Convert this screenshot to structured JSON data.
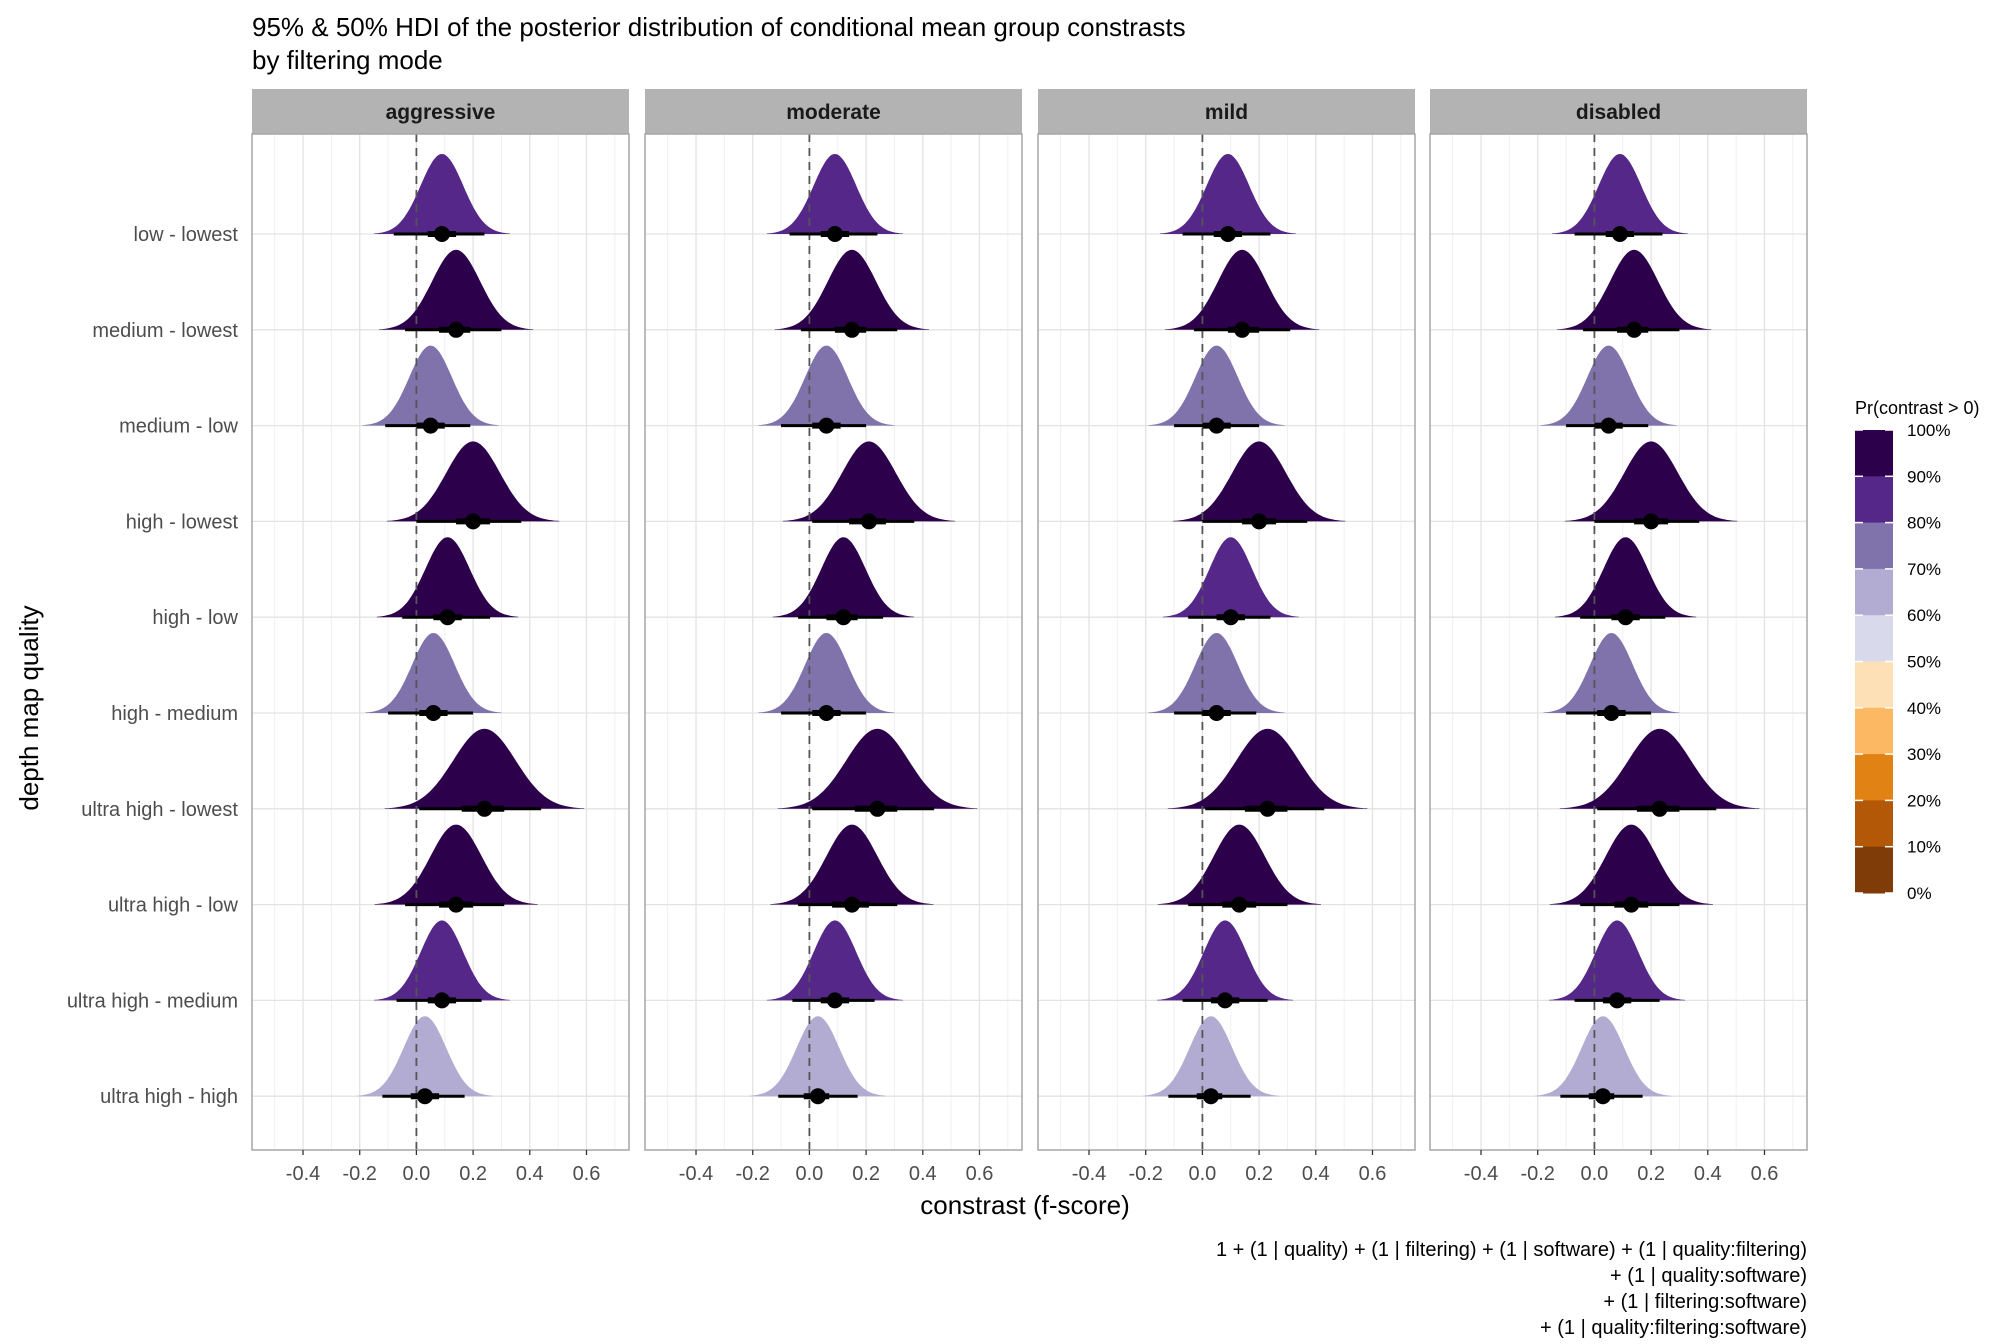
{
  "chart_data": {
    "type": "density-ridges",
    "title_lines": [
      "95% & 50% HDI of the posterior distribution of conditional mean group constrasts",
      "by filtering mode"
    ],
    "xlabel": "constrast (f-score)",
    "ylabel": "depth map quality",
    "caption_lines": [
      "1 + (1 | quality) + (1 | filtering) + (1 | software) + (1 | quality:filtering)",
      "+ (1 | quality:software)",
      "+ (1 | filtering:software)",
      "+ (1 | quality:filtering:software)"
    ],
    "xlim": [
      -0.58,
      0.75
    ],
    "x_ticks": [
      -0.4,
      -0.2,
      0.0,
      0.2,
      0.4,
      0.6
    ],
    "x_tick_labels": [
      "-0.4",
      "-0.2",
      "0.0",
      "0.2",
      "0.4",
      "0.6"
    ],
    "reference_line_x": 0,
    "grid": true,
    "legend_position": "right",
    "legend": {
      "title": "Pr(contrast > 0)",
      "labels": [
        "100%",
        "90%",
        "80%",
        "70%",
        "60%",
        "50%",
        "40%",
        "30%",
        "20%",
        "10%",
        "0%"
      ],
      "bins": [
        {
          "color": "#2d004b",
          "prob_min": 0.9
        },
        {
          "color": "#542788",
          "prob_min": 0.8
        },
        {
          "color": "#8073ac",
          "prob_min": 0.7
        },
        {
          "color": "#b2abd2",
          "prob_min": 0.6
        },
        {
          "color": "#d8daeb",
          "prob_min": 0.5
        },
        {
          "color": "#fee0b6",
          "prob_min": 0.4
        },
        {
          "color": "#fdb863",
          "prob_min": 0.3
        },
        {
          "color": "#e08214",
          "prob_min": 0.2
        },
        {
          "color": "#b35806",
          "prob_min": 0.1
        },
        {
          "color": "#7f3b08",
          "prob_min": 0.0
        }
      ]
    },
    "categories": [
      "low - lowest",
      "medium - lowest",
      "medium - low",
      "high - lowest",
      "high - low",
      "high - medium",
      "ultra high - lowest",
      "ultra high - low",
      "ultra high - medium",
      "ultra high - high"
    ],
    "panels": [
      {
        "name": "aggressive",
        "rows": [
          {
            "mean": 0.09,
            "sd": 0.075,
            "hdi50": [
              0.04,
              0.14
            ],
            "hdi95": [
              -0.08,
              0.24
            ],
            "prob": 0.88
          },
          {
            "mean": 0.14,
            "sd": 0.085,
            "hdi50": [
              0.08,
              0.19
            ],
            "hdi95": [
              -0.04,
              0.3
            ],
            "prob": 0.94
          },
          {
            "mean": 0.05,
            "sd": 0.075,
            "hdi50": [
              0.0,
              0.1
            ],
            "hdi95": [
              -0.11,
              0.19
            ],
            "prob": 0.76
          },
          {
            "mean": 0.2,
            "sd": 0.095,
            "hdi50": [
              0.14,
              0.26
            ],
            "hdi95": [
              0.0,
              0.37
            ],
            "prob": 0.97
          },
          {
            "mean": 0.11,
            "sd": 0.078,
            "hdi50": [
              0.06,
              0.16
            ],
            "hdi95": [
              -0.05,
              0.26
            ],
            "prob": 0.92
          },
          {
            "mean": 0.06,
            "sd": 0.075,
            "hdi50": [
              0.01,
              0.11
            ],
            "hdi95": [
              -0.1,
              0.2
            ],
            "prob": 0.78
          },
          {
            "mean": 0.24,
            "sd": 0.11,
            "hdi50": [
              0.16,
              0.31
            ],
            "hdi95": [
              0.01,
              0.44
            ],
            "prob": 0.97
          },
          {
            "mean": 0.14,
            "sd": 0.09,
            "hdi50": [
              0.08,
              0.2
            ],
            "hdi95": [
              -0.04,
              0.31
            ],
            "prob": 0.93
          },
          {
            "mean": 0.09,
            "sd": 0.075,
            "hdi50": [
              0.04,
              0.14
            ],
            "hdi95": [
              -0.07,
              0.23
            ],
            "prob": 0.88
          },
          {
            "mean": 0.03,
            "sd": 0.075,
            "hdi50": [
              -0.02,
              0.08
            ],
            "hdi95": [
              -0.12,
              0.17
            ],
            "prob": 0.64
          }
        ]
      },
      {
        "name": "moderate",
        "rows": [
          {
            "mean": 0.09,
            "sd": 0.075,
            "hdi50": [
              0.04,
              0.14
            ],
            "hdi95": [
              -0.07,
              0.24
            ],
            "prob": 0.88
          },
          {
            "mean": 0.15,
            "sd": 0.085,
            "hdi50": [
              0.09,
              0.2
            ],
            "hdi95": [
              -0.03,
              0.31
            ],
            "prob": 0.95
          },
          {
            "mean": 0.06,
            "sd": 0.075,
            "hdi50": [
              0.01,
              0.11
            ],
            "hdi95": [
              -0.1,
              0.2
            ],
            "prob": 0.78
          },
          {
            "mean": 0.21,
            "sd": 0.095,
            "hdi50": [
              0.14,
              0.27
            ],
            "hdi95": [
              0.01,
              0.37
            ],
            "prob": 0.97
          },
          {
            "mean": 0.12,
            "sd": 0.078,
            "hdi50": [
              0.06,
              0.17
            ],
            "hdi95": [
              -0.04,
              0.26
            ],
            "prob": 0.92
          },
          {
            "mean": 0.06,
            "sd": 0.075,
            "hdi50": [
              0.01,
              0.11
            ],
            "hdi95": [
              -0.1,
              0.2
            ],
            "prob": 0.78
          },
          {
            "mean": 0.24,
            "sd": 0.11,
            "hdi50": [
              0.16,
              0.31
            ],
            "hdi95": [
              0.01,
              0.44
            ],
            "prob": 0.97
          },
          {
            "mean": 0.15,
            "sd": 0.09,
            "hdi50": [
              0.08,
              0.21
            ],
            "hdi95": [
              -0.04,
              0.31
            ],
            "prob": 0.93
          },
          {
            "mean": 0.09,
            "sd": 0.075,
            "hdi50": [
              0.04,
              0.14
            ],
            "hdi95": [
              -0.06,
              0.23
            ],
            "prob": 0.89
          },
          {
            "mean": 0.03,
            "sd": 0.075,
            "hdi50": [
              -0.02,
              0.07
            ],
            "hdi95": [
              -0.11,
              0.17
            ],
            "prob": 0.64
          }
        ]
      },
      {
        "name": "mild",
        "rows": [
          {
            "mean": 0.09,
            "sd": 0.075,
            "hdi50": [
              0.04,
              0.14
            ],
            "hdi95": [
              -0.07,
              0.24
            ],
            "prob": 0.88
          },
          {
            "mean": 0.14,
            "sd": 0.085,
            "hdi50": [
              0.09,
              0.2
            ],
            "hdi95": [
              -0.03,
              0.31
            ],
            "prob": 0.94
          },
          {
            "mean": 0.05,
            "sd": 0.075,
            "hdi50": [
              0.0,
              0.1
            ],
            "hdi95": [
              -0.1,
              0.2
            ],
            "prob": 0.76
          },
          {
            "mean": 0.2,
            "sd": 0.095,
            "hdi50": [
              0.14,
              0.26
            ],
            "hdi95": [
              0.0,
              0.37
            ],
            "prob": 0.97
          },
          {
            "mean": 0.1,
            "sd": 0.075,
            "hdi50": [
              0.05,
              0.15
            ],
            "hdi95": [
              -0.05,
              0.24
            ],
            "prob": 0.89
          },
          {
            "mean": 0.05,
            "sd": 0.075,
            "hdi50": [
              0.0,
              0.1
            ],
            "hdi95": [
              -0.1,
              0.19
            ],
            "prob": 0.76
          },
          {
            "mean": 0.23,
            "sd": 0.11,
            "hdi50": [
              0.15,
              0.3
            ],
            "hdi95": [
              0.01,
              0.43
            ],
            "prob": 0.97
          },
          {
            "mean": 0.13,
            "sd": 0.09,
            "hdi50": [
              0.07,
              0.19
            ],
            "hdi95": [
              -0.05,
              0.3
            ],
            "prob": 0.92
          },
          {
            "mean": 0.08,
            "sd": 0.075,
            "hdi50": [
              0.03,
              0.13
            ],
            "hdi95": [
              -0.07,
              0.23
            ],
            "prob": 0.87
          },
          {
            "mean": 0.03,
            "sd": 0.075,
            "hdi50": [
              -0.02,
              0.07
            ],
            "hdi95": [
              -0.12,
              0.17
            ],
            "prob": 0.64
          }
        ]
      },
      {
        "name": "disabled",
        "rows": [
          {
            "mean": 0.09,
            "sd": 0.075,
            "hdi50": [
              0.04,
              0.14
            ],
            "hdi95": [
              -0.07,
              0.24
            ],
            "prob": 0.88
          },
          {
            "mean": 0.14,
            "sd": 0.085,
            "hdi50": [
              0.08,
              0.19
            ],
            "hdi95": [
              -0.04,
              0.3
            ],
            "prob": 0.94
          },
          {
            "mean": 0.05,
            "sd": 0.075,
            "hdi50": [
              0.0,
              0.1
            ],
            "hdi95": [
              -0.1,
              0.19
            ],
            "prob": 0.76
          },
          {
            "mean": 0.2,
            "sd": 0.095,
            "hdi50": [
              0.14,
              0.26
            ],
            "hdi95": [
              0.0,
              0.37
            ],
            "prob": 0.97
          },
          {
            "mean": 0.11,
            "sd": 0.078,
            "hdi50": [
              0.06,
              0.16
            ],
            "hdi95": [
              -0.05,
              0.25
            ],
            "prob": 0.92
          },
          {
            "mean": 0.06,
            "sd": 0.075,
            "hdi50": [
              0.01,
              0.11
            ],
            "hdi95": [
              -0.1,
              0.2
            ],
            "prob": 0.78
          },
          {
            "mean": 0.23,
            "sd": 0.11,
            "hdi50": [
              0.15,
              0.3
            ],
            "hdi95": [
              0.01,
              0.43
            ],
            "prob": 0.97
          },
          {
            "mean": 0.13,
            "sd": 0.09,
            "hdi50": [
              0.07,
              0.19
            ],
            "hdi95": [
              -0.05,
              0.3
            ],
            "prob": 0.93
          },
          {
            "mean": 0.08,
            "sd": 0.075,
            "hdi50": [
              0.03,
              0.13
            ],
            "hdi95": [
              -0.07,
              0.23
            ],
            "prob": 0.87
          },
          {
            "mean": 0.03,
            "sd": 0.075,
            "hdi50": [
              -0.02,
              0.07
            ],
            "hdi95": [
              -0.12,
              0.17
            ],
            "prob": 0.64
          }
        ]
      }
    ]
  }
}
